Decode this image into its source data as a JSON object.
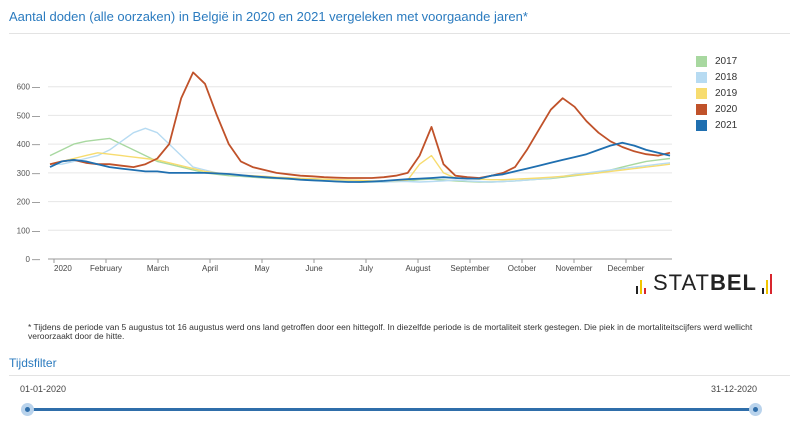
{
  "header": {
    "title": "Aantal doden (alle oorzaken) in België in 2020 en 2021 vergeleken met voorgaande jaren*"
  },
  "chart_data": {
    "type": "line",
    "title": "Aantal doden (alle oorzaken) in België in 2020 en 2021 vergeleken met voorgaande jaren*",
    "xlabel": "",
    "ylabel": "",
    "x_unit": "week",
    "ylim": [
      0,
      700
    ],
    "yticks": [
      0,
      100,
      200,
      300,
      400,
      500,
      600
    ],
    "xticks": [
      "2020",
      "February",
      "March",
      "April",
      "May",
      "June",
      "July",
      "August",
      "September",
      "October",
      "November",
      "December"
    ],
    "grid": true,
    "legend_position": "right",
    "series": [
      {
        "name": "2017",
        "color": "#a8d8a0",
        "values": [
          360,
          380,
          400,
          410,
          415,
          420,
          400,
          380,
          360,
          340,
          330,
          320,
          310,
          300,
          295,
          290,
          288,
          285,
          282,
          280,
          278,
          276,
          274,
          272,
          270,
          270,
          268,
          268,
          268,
          270,
          272,
          276,
          278,
          275,
          272,
          270,
          268,
          268,
          270,
          272,
          275,
          278,
          280,
          285,
          290,
          295,
          300,
          310,
          320,
          330,
          340,
          345,
          350
        ]
      },
      {
        "name": "2018",
        "color": "#b7dbf2",
        "values": [
          330,
          330,
          340,
          350,
          360,
          380,
          410,
          440,
          455,
          440,
          400,
          360,
          320,
          310,
          300,
          295,
          290,
          288,
          285,
          282,
          280,
          278,
          276,
          274,
          272,
          270,
          270,
          268,
          268,
          270,
          270,
          268,
          270,
          272,
          275,
          272,
          270,
          268,
          270,
          272,
          275,
          278,
          282,
          288,
          295,
          300,
          305,
          310,
          315,
          320,
          325,
          330,
          335
        ]
      },
      {
        "name": "2019",
        "color": "#f7dc6f",
        "values": [
          330,
          340,
          350,
          360,
          370,
          365,
          360,
          355,
          350,
          345,
          335,
          325,
          315,
          305,
          300,
          295,
          292,
          290,
          288,
          285,
          283,
          281,
          280,
          278,
          276,
          275,
          274,
          272,
          272,
          273,
          275,
          330,
          360,
          300,
          282,
          280,
          278,
          276,
          276,
          278,
          280,
          282,
          285,
          288,
          292,
          296,
          300,
          305,
          310,
          315,
          320,
          325,
          330
        ]
      },
      {
        "name": "2020",
        "color": "#c0522a",
        "values": [
          330,
          340,
          345,
          335,
          330,
          330,
          325,
          320,
          330,
          350,
          400,
          560,
          650,
          610,
          500,
          400,
          340,
          320,
          310,
          300,
          295,
          290,
          288,
          285,
          283,
          282,
          282,
          282,
          285,
          290,
          300,
          360,
          460,
          330,
          290,
          285,
          282,
          290,
          300,
          320,
          380,
          450,
          520,
          560,
          530,
          480,
          440,
          410,
          390,
          375,
          365,
          360,
          370
        ]
      },
      {
        "name": "2021",
        "color": "#1f6fb0",
        "values": [
          320,
          340,
          345,
          340,
          330,
          320,
          315,
          310,
          305,
          305,
          300,
          300,
          300,
          300,
          298,
          296,
          292,
          288,
          285,
          282,
          280,
          276,
          274,
          272,
          270,
          268,
          268,
          270,
          272,
          275,
          278,
          280,
          282,
          285,
          282,
          280,
          280,
          290,
          295,
          305,
          315,
          325,
          335,
          345,
          355,
          365,
          380,
          395,
          405,
          395,
          380,
          370,
          360
        ]
      }
    ]
  },
  "logo": {
    "text_regular": "STAT",
    "text_bold": "BEL"
  },
  "footnote": "* Tijdens de periode van 5 augustus tot 16 augustus werd ons land getroffen door een hittegolf. In diezelfde periode is de mortaliteit sterk gestegen. Die piek in de mortaliteitscijfers werd wellicht veroorzaakt door de hitte.",
  "time_filter": {
    "title": "Tijdsfilter",
    "start_date": "01-01-2020",
    "end_date": "31-12-2020"
  }
}
